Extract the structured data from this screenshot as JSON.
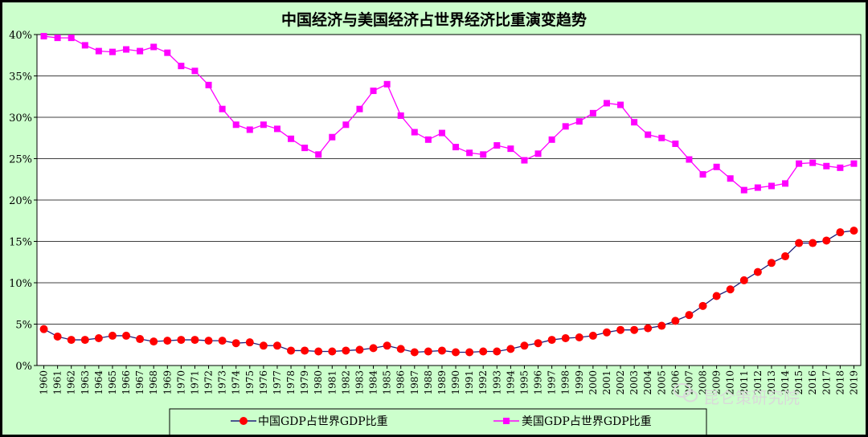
{
  "chart_data": {
    "type": "line",
    "title": "中国经济与美国经济占世界经济比重演变趋势",
    "x": [
      "1960",
      "1961",
      "1962",
      "1963",
      "1964",
      "1965",
      "1966",
      "1967",
      "1968",
      "1969",
      "1970",
      "1971",
      "1972",
      "1973",
      "1974",
      "1975",
      "1976",
      "1977",
      "1978",
      "1979",
      "1980",
      "1981",
      "1982",
      "1983",
      "1984",
      "1985",
      "1986",
      "1987",
      "1988",
      "1989",
      "1990",
      "1991",
      "1992",
      "1993",
      "1994",
      "1995",
      "1996",
      "1997",
      "1998",
      "1999",
      "2000",
      "2001",
      "2002",
      "2003",
      "2004",
      "2005",
      "2006",
      "2007",
      "2008",
      "2009",
      "2010",
      "2011",
      "2012",
      "2013",
      "2014",
      "2015",
      "2016",
      "2017",
      "2018",
      "2019"
    ],
    "ylim": [
      0,
      40
    ],
    "yticks": [
      "0%",
      "5%",
      "10%",
      "15%",
      "20%",
      "25%",
      "30%",
      "35%",
      "40%"
    ],
    "grid": true,
    "legend_position": "bottom",
    "series": [
      {
        "name": "中国GDP占世界GDP比重",
        "color": "#ff0000",
        "line_color": "#1f1f7a",
        "marker": "circle",
        "values": [
          4.4,
          3.5,
          3.1,
          3.1,
          3.3,
          3.6,
          3.6,
          3.2,
          2.9,
          3.0,
          3.1,
          3.1,
          3.0,
          3.0,
          2.7,
          2.8,
          2.4,
          2.4,
          1.8,
          1.8,
          1.7,
          1.7,
          1.8,
          1.9,
          2.1,
          2.4,
          2.0,
          1.6,
          1.7,
          1.8,
          1.6,
          1.6,
          1.7,
          1.7,
          2.0,
          2.4,
          2.7,
          3.1,
          3.3,
          3.4,
          3.6,
          4.0,
          4.3,
          4.3,
          4.5,
          4.8,
          5.4,
          6.1,
          7.2,
          8.4,
          9.2,
          10.3,
          11.3,
          12.4,
          13.2,
          14.8,
          14.8,
          15.1,
          16.1,
          16.3
        ]
      },
      {
        "name": "美国GDP占世界GDP比重",
        "color": "#ff00ff",
        "line_color": "#ff00ff",
        "marker": "square",
        "values": [
          39.8,
          39.6,
          39.6,
          38.7,
          38.0,
          37.9,
          38.2,
          38.0,
          38.5,
          37.8,
          36.2,
          35.6,
          33.9,
          31.0,
          29.1,
          28.5,
          29.1,
          28.6,
          27.4,
          26.3,
          25.5,
          27.6,
          29.1,
          31.0,
          33.2,
          34.0,
          30.2,
          28.2,
          27.3,
          28.1,
          26.4,
          25.7,
          25.5,
          26.6,
          26.2,
          24.8,
          25.6,
          27.3,
          28.9,
          29.5,
          30.5,
          31.7,
          31.5,
          29.4,
          27.9,
          27.5,
          26.8,
          24.9,
          23.1,
          24.0,
          22.6,
          21.2,
          21.5,
          21.7,
          22.0,
          24.4,
          24.5,
          24.1,
          23.9,
          24.4
        ]
      }
    ]
  },
  "watermark": "昆仑策研究院"
}
